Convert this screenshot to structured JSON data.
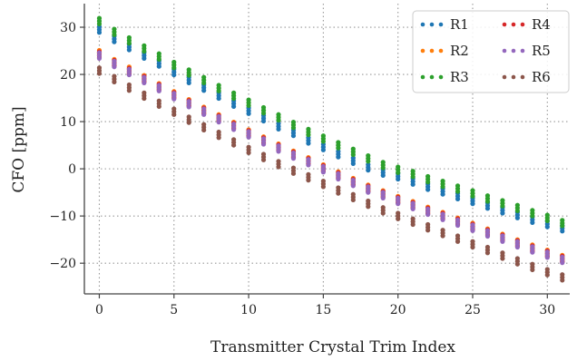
{
  "chart_data": {
    "type": "scatter",
    "title": "",
    "xlabel": "Transmitter Crystal Trim Index",
    "ylabel": "CFO [ppm]",
    "xlim": [
      -1,
      31.5
    ],
    "ylim": [
      -26.5,
      35
    ],
    "xticks": [
      0,
      5,
      10,
      15,
      20,
      25,
      30
    ],
    "yticks": [
      -20,
      -10,
      0,
      10,
      20,
      30
    ],
    "grid": true,
    "legend_position": "top-right",
    "legend_columns": 2,
    "x": [
      0,
      1,
      2,
      3,
      4,
      5,
      6,
      7,
      8,
      9,
      10,
      11,
      12,
      13,
      14,
      15,
      16,
      17,
      18,
      19,
      20,
      21,
      22,
      23,
      24,
      25,
      26,
      27,
      28,
      29,
      30,
      31
    ],
    "series": [
      {
        "name": "R1",
        "color": "#1f77b4",
        "values": [
          29.5,
          27.5,
          25.8,
          24.0,
          22.3,
          20.5,
          18.8,
          17.2,
          15.5,
          13.8,
          12.3,
          10.7,
          9.0,
          7.6,
          6.0,
          4.6,
          3.1,
          1.7,
          0.3,
          -0.8,
          -1.6,
          -2.7,
          -3.8,
          -4.8,
          -5.8,
          -6.8,
          -7.8,
          -8.8,
          -9.8,
          -10.8,
          -11.7,
          -12.6
        ]
      },
      {
        "name": "R2",
        "color": "#ff7f0e",
        "values": [
          24.5,
          22.6,
          21.0,
          19.2,
          17.5,
          15.8,
          14.1,
          12.5,
          10.9,
          9.3,
          7.7,
          6.2,
          4.7,
          3.2,
          1.8,
          0.3,
          -1.2,
          -2.6,
          -4.0,
          -5.2,
          -6.4,
          -7.5,
          -8.7,
          -9.8,
          -11.0,
          -12.1,
          -13.3,
          -14.4,
          -15.6,
          -16.7,
          -17.8,
          -18.9
        ]
      },
      {
        "name": "R3",
        "color": "#2ca02c",
        "values": [
          31.3,
          29.0,
          27.2,
          25.5,
          23.8,
          22.0,
          20.4,
          18.8,
          17.1,
          15.5,
          14.0,
          12.4,
          10.9,
          9.3,
          7.8,
          6.4,
          5.0,
          3.6,
          2.2,
          0.8,
          -0.2,
          -1.1,
          -2.2,
          -3.2,
          -4.2,
          -5.2,
          -6.3,
          -7.3,
          -8.3,
          -9.4,
          -10.4,
          -11.5
        ]
      },
      {
        "name": "R4",
        "color": "#d62728",
        "values": [
          24.2,
          22.4,
          20.7,
          19.0,
          17.3,
          15.6,
          13.9,
          12.3,
          10.7,
          9.1,
          7.5,
          6.0,
          4.5,
          3.0,
          1.6,
          0.1,
          -1.4,
          -2.8,
          -4.2,
          -5.4,
          -6.6,
          -7.7,
          -8.9,
          -10.0,
          -11.2,
          -12.3,
          -13.5,
          -14.6,
          -15.8,
          -16.9,
          -18.0,
          -19.1
        ]
      },
      {
        "name": "R5",
        "color": "#9467bd",
        "values": [
          24.0,
          22.2,
          20.5,
          18.8,
          17.1,
          15.4,
          13.7,
          12.1,
          10.5,
          8.9,
          7.3,
          5.8,
          4.3,
          2.8,
          1.4,
          -0.1,
          -1.6,
          -3.0,
          -4.4,
          -5.6,
          -6.8,
          -7.9,
          -9.1,
          -10.2,
          -11.4,
          -12.5,
          -13.7,
          -14.8,
          -16.0,
          -17.1,
          -18.2,
          -19.3
        ]
      },
      {
        "name": "R6",
        "color": "#8c564b",
        "values": [
          20.8,
          19.0,
          17.2,
          15.5,
          13.8,
          12.1,
          10.4,
          8.8,
          7.2,
          5.6,
          4.0,
          2.5,
          1.0,
          -0.4,
          -1.8,
          -3.2,
          -4.6,
          -6.0,
          -7.4,
          -8.8,
          -10.0,
          -11.2,
          -12.4,
          -13.6,
          -14.8,
          -16.0,
          -17.2,
          -18.4,
          -19.6,
          -20.8,
          -21.9,
          -23.0
        ]
      }
    ]
  }
}
